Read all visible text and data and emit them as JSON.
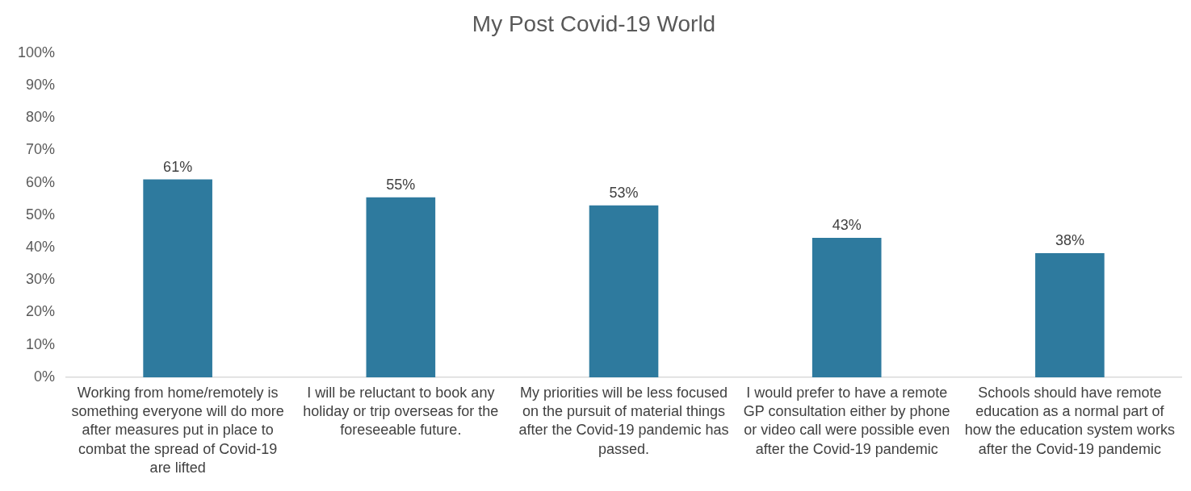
{
  "chart_data": {
    "type": "bar",
    "title": "My Post Covid-19 World",
    "categories": [
      "Working from home/remotely is something everyone will do more after measures put in place to combat the spread of Covid-19 are lifted",
      "I will be reluctant to book any holiday or trip overseas for the foreseeable future.",
      "My priorities will be less focused on the pursuit of material things after the Covid-19 pandemic has passed.",
      "I would prefer to have a remote GP consultation either by phone or video call were possible even after the Covid-19 pandemic",
      "Schools should have remote education as a normal part of how the education system works after the Covid-19 pandemic"
    ],
    "values": [
      61,
      55.5,
      53,
      43,
      38.3
    ],
    "value_labels": [
      "61%",
      "55%",
      "53%",
      "43%",
      "38%"
    ],
    "color": "#2e7a9e",
    "ylim": [
      0,
      100
    ],
    "yticks": [
      {
        "value": 0,
        "label": "0%"
      },
      {
        "value": 10,
        "label": "10%"
      },
      {
        "value": 20,
        "label": "20%"
      },
      {
        "value": 30,
        "label": "30%"
      },
      {
        "value": 40,
        "label": "40%"
      },
      {
        "value": 50,
        "label": "50%"
      },
      {
        "value": 60,
        "label": "60%"
      },
      {
        "value": 70,
        "label": "70%"
      },
      {
        "value": 80,
        "label": "80%"
      },
      {
        "value": 90,
        "label": "90%"
      },
      {
        "value": 100,
        "label": "100%"
      }
    ],
    "grid": false,
    "legend": false
  }
}
